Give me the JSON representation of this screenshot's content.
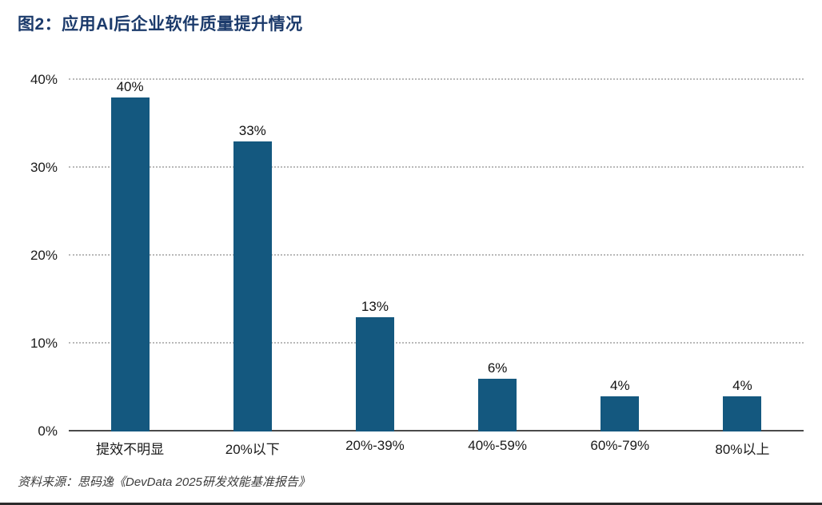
{
  "title": "图2：应用AI后企业软件质量提升情况",
  "source": "资料来源：思码逸《DevData 2025研发效能基准报告》",
  "colors": {
    "bar": "#14587f",
    "title": "#1b3a6b",
    "gridline": "#b9b9b9",
    "baseline": "#4a4a4a"
  },
  "chart_data": {
    "type": "bar",
    "title": "图2：应用AI后企业软件质量提升情况",
    "categories": [
      "提效不明显",
      "20%以下",
      "20%-39%",
      "40%-59%",
      "60%-79%",
      "80%以上"
    ],
    "values": [
      40,
      33,
      13,
      6,
      4,
      4
    ],
    "value_labels": [
      "40%",
      "33%",
      "13%",
      "6%",
      "4%",
      "4%"
    ],
    "xlabel": "",
    "ylabel": "",
    "ylim": [
      0,
      40
    ],
    "yticks": [
      0,
      10,
      20,
      30,
      40
    ],
    "ytick_labels": [
      "0%",
      "10%",
      "20%",
      "30%",
      "40%"
    ],
    "grid": "horizontal-dotted",
    "legend": "none",
    "source": "资料来源：思码逸《DevData 2025研发效能基准报告》"
  }
}
